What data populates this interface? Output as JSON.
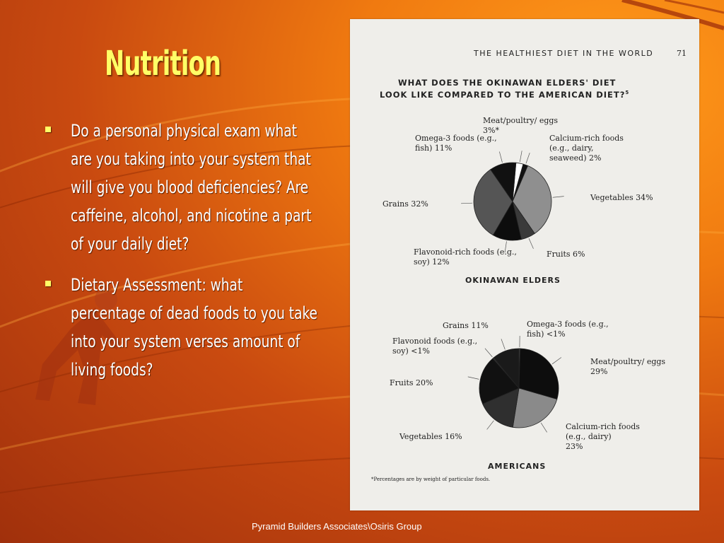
{
  "slide": {
    "title": "Nutrition",
    "bullets": [
      "Do a personal physical exam what are you taking into your system that will give you blood deficiencies?  Are caffeine, alcohol, and nicotine a part of your daily diet?",
      "Dietary Assessment:  what percentage of dead foods to you take into your system verses amount of living foods?"
    ],
    "footer": "Pyramid Builders Associates\\Osiris Group"
  },
  "page_scan": {
    "running_head": "THE HEALTHIEST DIET IN THE WORLD",
    "page_number": "71",
    "heading_line1": "WHAT DOES THE OKINAWAN ELDERS' DIET",
    "heading_line2": "LOOK LIKE COMPARED TO THE AMERICAN DIET?",
    "heading_note": "5",
    "footnote": "*Percentages are by weight of particular foods."
  },
  "chart_data": [
    {
      "type": "pie",
      "title": "OKINAWAN ELDERS",
      "slices": [
        {
          "label": "Meat/poultry/ eggs 3%*",
          "value": 3,
          "color": "#ffffff"
        },
        {
          "label": "Calcium-rich foods (e.g., dairy, seaweed) 2%",
          "value": 2,
          "color": "#111111"
        },
        {
          "label": "Vegetables 34%",
          "value": 34,
          "color": "#8f8f8f"
        },
        {
          "label": "Fruits 6%",
          "value": 6,
          "color": "#3a3a3a"
        },
        {
          "label": "Flavonoid-rich foods (e.g., soy) 12%",
          "value": 12,
          "color": "#0d0d0d"
        },
        {
          "label": "Grains 32%",
          "value": 32,
          "color": "#555555"
        },
        {
          "label": "Omega-3 foods (e.g., fish) 11%",
          "value": 11,
          "color": "#111111"
        }
      ]
    },
    {
      "type": "pie",
      "title": "AMERICANS",
      "slices": [
        {
          "label": "Omega-3 foods (e.g., fish) <1%",
          "value": 0.5,
          "color": "#444444"
        },
        {
          "label": "Meat/poultry/ eggs 29%",
          "value": 29,
          "color": "#0d0d0d"
        },
        {
          "label": "Calcium-rich foods (e.g., dairy) 23%",
          "value": 23,
          "color": "#8a8a8a"
        },
        {
          "label": "Vegetables 16%",
          "value": 16,
          "color": "#2f2f2f"
        },
        {
          "label": "Fruits 20%",
          "value": 20,
          "color": "#111111"
        },
        {
          "label": "Flavonoid foods (e.g., soy) <1%",
          "value": 0.5,
          "color": "#333333"
        },
        {
          "label": "Grains 11%",
          "value": 11,
          "color": "#1a1a1a"
        }
      ]
    }
  ]
}
